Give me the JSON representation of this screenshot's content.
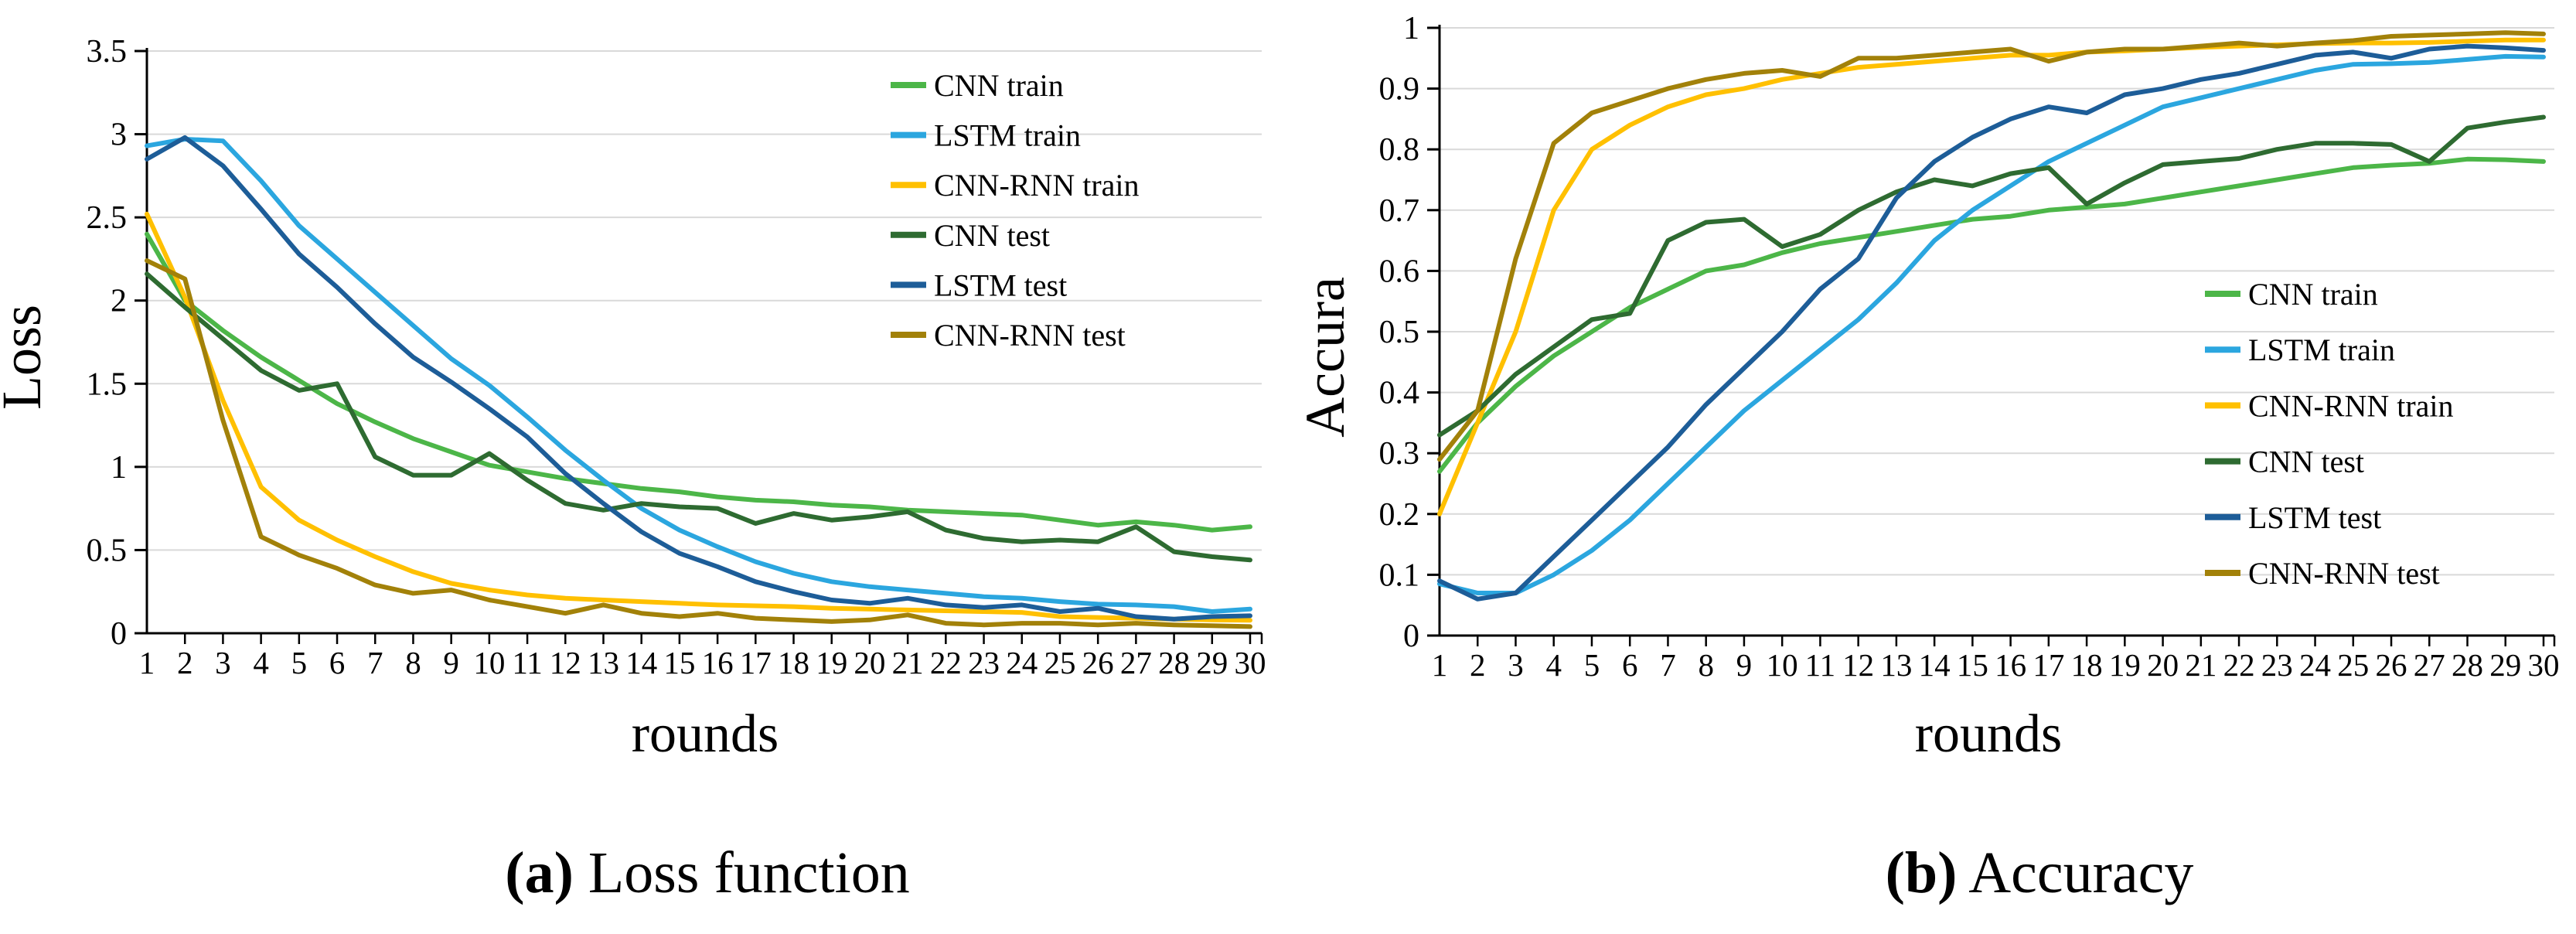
{
  "figure": {
    "captions": [
      {
        "label": "(a)",
        "text": " Loss function"
      },
      {
        "label": "(b)",
        "text": " Accuracy"
      }
    ]
  },
  "colors": {
    "cnn_train": "#4CB648",
    "lstm_train": "#2BA6DF",
    "cnnrnn_train": "#FFC000",
    "cnn_test": "#2E6B31",
    "lstm_test": "#1D5D98",
    "cnnrnn_test": "#A28109",
    "grid": "#D9D9D9",
    "axis": "#000000"
  },
  "chart_data": [
    {
      "id": "loss",
      "type": "line",
      "title": "",
      "xlabel": "rounds",
      "ylabel": "Loss",
      "x": [
        1,
        2,
        3,
        4,
        5,
        6,
        7,
        8,
        9,
        10,
        11,
        12,
        13,
        14,
        15,
        16,
        17,
        18,
        19,
        20,
        21,
        22,
        23,
        24,
        25,
        26,
        27,
        28,
        29,
        30
      ],
      "ylim": [
        0,
        3.5
      ],
      "grid": true,
      "legend_position": "inside-top-right",
      "yticks": [
        {
          "value": 0,
          "label": "0"
        },
        {
          "value": 0.5,
          "label": "0.5"
        },
        {
          "value": 1,
          "label": "1"
        },
        {
          "value": 1.5,
          "label": "1.5"
        },
        {
          "value": 2,
          "label": "2"
        },
        {
          "value": 2.5,
          "label": "2.5"
        },
        {
          "value": 3,
          "label": "3"
        },
        {
          "value": 3.5,
          "label": "3.5"
        }
      ],
      "series": [
        {
          "name": "CNN train",
          "color_key": "cnn_train",
          "values": [
            2.4,
            2.0,
            1.82,
            1.66,
            1.52,
            1.38,
            1.27,
            1.17,
            1.09,
            1.01,
            0.97,
            0.93,
            0.9,
            0.87,
            0.85,
            0.82,
            0.8,
            0.79,
            0.77,
            0.76,
            0.74,
            0.73,
            0.72,
            0.71,
            0.68,
            0.65,
            0.67,
            0.65,
            0.62,
            0.64
          ]
        },
        {
          "name": "LSTM train",
          "color_key": "lstm_train",
          "values": [
            2.93,
            2.97,
            2.96,
            2.72,
            2.45,
            2.25,
            2.05,
            1.85,
            1.65,
            1.49,
            1.3,
            1.1,
            0.92,
            0.75,
            0.62,
            0.52,
            0.43,
            0.36,
            0.31,
            0.28,
            0.26,
            0.24,
            0.22,
            0.21,
            0.19,
            0.175,
            0.17,
            0.16,
            0.13,
            0.145
          ]
        },
        {
          "name": "CNN-RNN train",
          "color_key": "cnnrnn_train",
          "values": [
            2.52,
            2.02,
            1.4,
            0.88,
            0.68,
            0.56,
            0.46,
            0.37,
            0.3,
            0.26,
            0.23,
            0.21,
            0.2,
            0.19,
            0.18,
            0.17,
            0.165,
            0.16,
            0.15,
            0.145,
            0.14,
            0.135,
            0.13,
            0.125,
            0.1,
            0.095,
            0.09,
            0.085,
            0.08,
            0.078
          ]
        },
        {
          "name": "CNN test",
          "color_key": "cnn_test",
          "values": [
            2.16,
            1.96,
            1.77,
            1.58,
            1.46,
            1.5,
            1.06,
            0.95,
            0.95,
            1.08,
            0.92,
            0.78,
            0.74,
            0.78,
            0.76,
            0.75,
            0.66,
            0.72,
            0.68,
            0.7,
            0.73,
            0.62,
            0.57,
            0.55,
            0.56,
            0.55,
            0.64,
            0.49,
            0.46,
            0.44
          ]
        },
        {
          "name": "LSTM test",
          "color_key": "lstm_test",
          "values": [
            2.85,
            2.98,
            2.81,
            2.55,
            2.28,
            2.08,
            1.86,
            1.66,
            1.51,
            1.35,
            1.18,
            0.96,
            0.78,
            0.61,
            0.48,
            0.4,
            0.31,
            0.25,
            0.2,
            0.18,
            0.21,
            0.17,
            0.155,
            0.17,
            0.13,
            0.15,
            0.1,
            0.085,
            0.1,
            0.105
          ]
        },
        {
          "name": "CNN-RNN test",
          "color_key": "cnnrnn_test",
          "values": [
            2.24,
            2.13,
            1.28,
            0.58,
            0.47,
            0.39,
            0.29,
            0.24,
            0.26,
            0.2,
            0.16,
            0.12,
            0.17,
            0.12,
            0.1,
            0.12,
            0.09,
            0.08,
            0.07,
            0.08,
            0.11,
            0.06,
            0.05,
            0.06,
            0.06,
            0.05,
            0.06,
            0.05,
            0.045,
            0.04
          ]
        }
      ]
    },
    {
      "id": "accuracy",
      "type": "line",
      "title": "",
      "xlabel": "rounds",
      "ylabel": "Accura",
      "x": [
        1,
        2,
        3,
        4,
        5,
        6,
        7,
        8,
        9,
        10,
        11,
        12,
        13,
        14,
        15,
        16,
        17,
        18,
        19,
        20,
        21,
        22,
        23,
        24,
        25,
        26,
        27,
        28,
        29,
        30
      ],
      "ylim": [
        0,
        1
      ],
      "grid": true,
      "legend_position": "inside-middle-right",
      "yticks": [
        {
          "value": 0,
          "label": "0"
        },
        {
          "value": 0.1,
          "label": "0.1"
        },
        {
          "value": 0.2,
          "label": "0.2"
        },
        {
          "value": 0.3,
          "label": "0.3"
        },
        {
          "value": 0.4,
          "label": "0.4"
        },
        {
          "value": 0.5,
          "label": "0.5"
        },
        {
          "value": 0.6,
          "label": "0.6"
        },
        {
          "value": 0.7,
          "label": "0.7"
        },
        {
          "value": 0.8,
          "label": "0.8"
        },
        {
          "value": 0.9,
          "label": "0.9"
        },
        {
          "value": 1,
          "label": "1"
        }
      ],
      "series": [
        {
          "name": "CNN train",
          "color_key": "cnn_train",
          "values": [
            0.27,
            0.35,
            0.41,
            0.46,
            0.5,
            0.54,
            0.57,
            0.6,
            0.61,
            0.63,
            0.645,
            0.655,
            0.665,
            0.675,
            0.685,
            0.69,
            0.7,
            0.705,
            0.71,
            0.72,
            0.73,
            0.74,
            0.75,
            0.76,
            0.77,
            0.774,
            0.777,
            0.784,
            0.783,
            0.78
          ]
        },
        {
          "name": "LSTM train",
          "color_key": "lstm_train",
          "values": [
            0.085,
            0.07,
            0.07,
            0.1,
            0.14,
            0.19,
            0.25,
            0.31,
            0.37,
            0.42,
            0.47,
            0.52,
            0.58,
            0.65,
            0.7,
            0.74,
            0.78,
            0.81,
            0.84,
            0.87,
            0.885,
            0.9,
            0.915,
            0.93,
            0.94,
            0.941,
            0.943,
            0.948,
            0.953,
            0.952
          ]
        },
        {
          "name": "CNN-RNN train",
          "color_key": "cnnrnn_train",
          "values": [
            0.2,
            0.35,
            0.5,
            0.7,
            0.8,
            0.84,
            0.87,
            0.89,
            0.9,
            0.915,
            0.925,
            0.935,
            0.94,
            0.945,
            0.95,
            0.955,
            0.955,
            0.96,
            0.962,
            0.965,
            0.968,
            0.97,
            0.972,
            0.974,
            0.975,
            0.975,
            0.976,
            0.978,
            0.98,
            0.98
          ]
        },
        {
          "name": "CNN test",
          "color_key": "cnn_test",
          "values": [
            0.33,
            0.37,
            0.43,
            0.475,
            0.52,
            0.53,
            0.65,
            0.68,
            0.685,
            0.64,
            0.66,
            0.7,
            0.73,
            0.75,
            0.74,
            0.76,
            0.77,
            0.71,
            0.745,
            0.775,
            0.78,
            0.785,
            0.8,
            0.81,
            0.81,
            0.808,
            0.78,
            0.835,
            0.845,
            0.853
          ]
        },
        {
          "name": "LSTM test",
          "color_key": "lstm_test",
          "values": [
            0.09,
            0.06,
            0.07,
            0.13,
            0.19,
            0.25,
            0.31,
            0.38,
            0.44,
            0.5,
            0.57,
            0.62,
            0.72,
            0.78,
            0.82,
            0.85,
            0.87,
            0.86,
            0.89,
            0.9,
            0.915,
            0.925,
            0.94,
            0.955,
            0.96,
            0.95,
            0.965,
            0.97,
            0.967,
            0.963
          ]
        },
        {
          "name": "CNN-RNN test",
          "color_key": "cnnrnn_test",
          "values": [
            0.29,
            0.37,
            0.62,
            0.81,
            0.86,
            0.88,
            0.9,
            0.915,
            0.925,
            0.93,
            0.92,
            0.95,
            0.95,
            0.955,
            0.96,
            0.965,
            0.945,
            0.96,
            0.965,
            0.965,
            0.97,
            0.975,
            0.97,
            0.975,
            0.979,
            0.986,
            0.988,
            0.99,
            0.992,
            0.99
          ]
        }
      ]
    }
  ]
}
